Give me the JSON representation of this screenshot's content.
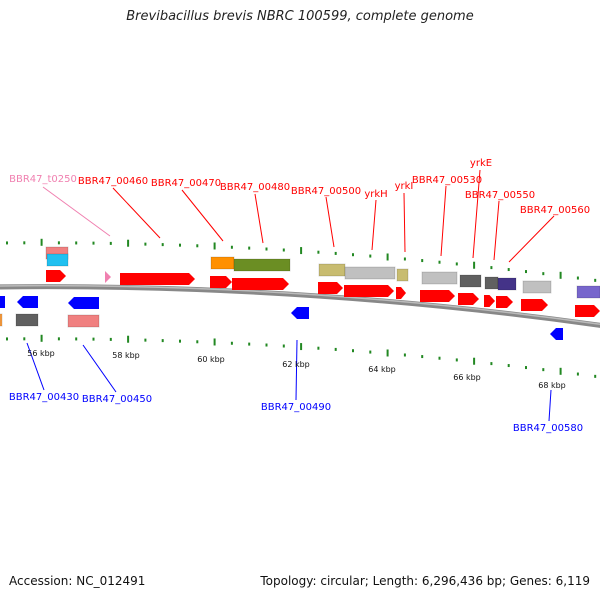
{
  "title": "Brevibacillus brevis NBRC 100599, complete genome",
  "accession": "Accession: NC_012491",
  "topology": "Topology: circular; Length: 6,296,436 bp; Genes: 6,119",
  "colors": {
    "forward": "#ff0000",
    "reverse": "#0000ff",
    "trna": "#f080b0",
    "ticks": "#228822",
    "backbone": "#999999"
  },
  "forward_labels": [
    "BBR47_t0250",
    "BBR47_00460",
    "BBR47_00470",
    "BBR47_00480",
    "BBR47_00500",
    "yrkH",
    "yrkI",
    "BBR47_00530",
    "yrkE",
    "BBR47_00550",
    "BBR47_00560"
  ],
  "reverse_labels": [
    "BBR47_00430",
    "BBR47_00450",
    "BBR47_00490",
    "BBR47_00580"
  ],
  "scale_labels": [
    "56 kbp",
    "58 kbp",
    "60 kbp",
    "62 kbp",
    "64 kbp",
    "66 kbp",
    "68 kbp"
  ]
}
